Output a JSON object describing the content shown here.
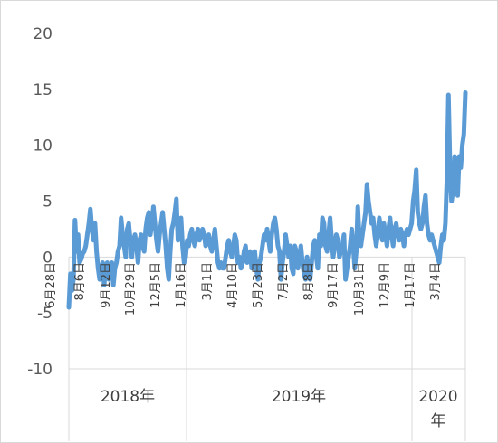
{
  "chart_data": {
    "type": "line",
    "title": "",
    "xlabel": "",
    "ylabel": "",
    "ylim": [
      -10,
      20
    ],
    "yticks": [
      -10,
      -5,
      0,
      5,
      10,
      15,
      20
    ],
    "grid": false,
    "legend": "none",
    "line_color": "#5B9BD5",
    "years": [
      {
        "label": "2018年"
      },
      {
        "label": "2019年"
      },
      {
        "label": "2020\n年"
      }
    ],
    "x_tick_labels": [
      {
        "label": "6月28日"
      },
      {
        "label": "8月6日"
      },
      {
        "label": "9月12日"
      },
      {
        "label": "10月29日"
      },
      {
        "label": "12月5日"
      },
      {
        "label": "1月16日"
      },
      {
        "label": "3月1日"
      },
      {
        "label": "4月10日"
      },
      {
        "label": "5月23日"
      },
      {
        "label": "7月2日"
      },
      {
        "label": "8月8日"
      },
      {
        "label": "9月17日"
      },
      {
        "label": "10月31日"
      },
      {
        "label": "12月9日"
      },
      {
        "label": "1月17日"
      },
      {
        "label": "3月4日"
      }
    ],
    "series": [
      {
        "values": [
          -4.5,
          -1.5,
          -3,
          -2,
          3.3,
          0.5,
          2,
          -0.5,
          -0.2,
          0.3,
          0.5,
          1,
          2,
          3,
          4.3,
          2.5,
          1.5,
          3,
          0.5,
          -1,
          -2,
          -1,
          -0.5,
          -2.5,
          -1,
          -0.5,
          -2,
          -1,
          -0.5,
          -2.5,
          -1,
          -0.5,
          0.5,
          1,
          3.5,
          2,
          1,
          0,
          2.5,
          3,
          1.5,
          0,
          1.5,
          2,
          1,
          -0.5,
          1.5,
          2,
          1,
          0.5,
          2.5,
          3.5,
          4,
          2,
          3,
          4.5,
          3,
          1.5,
          0.5,
          2,
          3,
          4,
          2.5,
          1,
          -1,
          -2,
          0.5,
          2.5,
          3,
          4,
          5.2,
          1.5,
          3,
          3.5,
          1,
          -0.5,
          0,
          1.5,
          1,
          2,
          2.5,
          1.5,
          1,
          2,
          2.5,
          1.5,
          2,
          2.5,
          2,
          1,
          1.5,
          2,
          1,
          0.5,
          1.5,
          2.5,
          1,
          -0.5,
          -1,
          -0.5,
          -1,
          -1,
          0,
          1,
          1.5,
          0.5,
          0,
          1,
          2,
          1.5,
          -0.5,
          0,
          -1,
          -0.5,
          0.5,
          1,
          -0.5,
          0,
          0.5,
          -1,
          0,
          0.5,
          -1,
          -2,
          -0.5,
          0,
          1,
          2,
          1.5,
          2.5,
          1.5,
          0.5,
          2,
          3,
          3.5,
          2.5,
          1,
          0.5,
          -2,
          -0.5,
          0.5,
          2,
          1,
          0,
          1,
          -1,
          -1.5,
          1,
          0.5,
          -1,
          0,
          1,
          -0.5,
          -1.5,
          -2,
          0,
          -1,
          -2,
          -0.5,
          1,
          1.5,
          0,
          -1,
          2,
          1,
          3.5,
          3,
          1,
          0.5,
          2,
          3.5,
          1.5,
          0,
          1,
          2,
          1.5,
          0,
          0.5,
          1,
          2,
          -2,
          -1,
          0,
          1,
          2.5,
          1,
          -1,
          0.5,
          4.5,
          1.5,
          1,
          2,
          3,
          4,
          6.5,
          5,
          4,
          3,
          3.5,
          2,
          1,
          2,
          3.5,
          2.5,
          1.5,
          3,
          2,
          1,
          2.5,
          3.5,
          2,
          1,
          2.5,
          3,
          2,
          1.5,
          2.5,
          2,
          1,
          2,
          2.5,
          2,
          2.5,
          3,
          5,
          6,
          7.8,
          4,
          3,
          2.5,
          3,
          4.5,
          5.5,
          3,
          2,
          1.5,
          2,
          1.5,
          1,
          0.5,
          0,
          -0.5,
          1,
          2,
          1.5,
          3,
          7,
          14.5,
          8,
          5,
          6,
          9,
          7,
          5.5,
          9,
          8,
          10,
          11,
          14.7
        ]
      }
    ]
  }
}
